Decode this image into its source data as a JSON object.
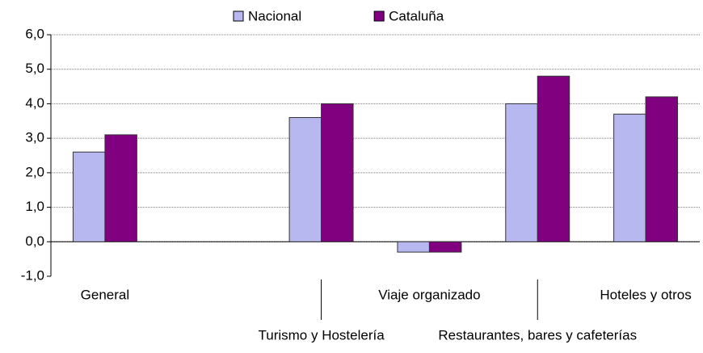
{
  "chart_data": {
    "type": "bar",
    "categories": [
      "General",
      null,
      "Turismo y Hostelería",
      "Viaje organizado",
      "Restaurantes, bares y cafeterías",
      "Hoteles y otros"
    ],
    "series": [
      {
        "name": "Nacional",
        "color": "#b8b8f0",
        "values": [
          2.6,
          null,
          3.6,
          -0.3,
          4.0,
          3.7
        ]
      },
      {
        "name": "Cataluña",
        "color": "#800080",
        "values": [
          3.1,
          null,
          4.0,
          -0.3,
          4.8,
          4.2
        ]
      }
    ],
    "ylim": [
      -1,
      6
    ],
    "yticks": [
      {
        "value": -1,
        "label": "-1,0"
      },
      {
        "value": 0,
        "label": "0,0"
      },
      {
        "value": 1,
        "label": "1,0"
      },
      {
        "value": 2,
        "label": "2,0"
      },
      {
        "value": 3,
        "label": "3,0"
      },
      {
        "value": 4,
        "label": "4,0"
      },
      {
        "value": 5,
        "label": "5,0"
      },
      {
        "value": 6,
        "label": "6,0"
      }
    ],
    "grid": true,
    "legend": "top"
  }
}
